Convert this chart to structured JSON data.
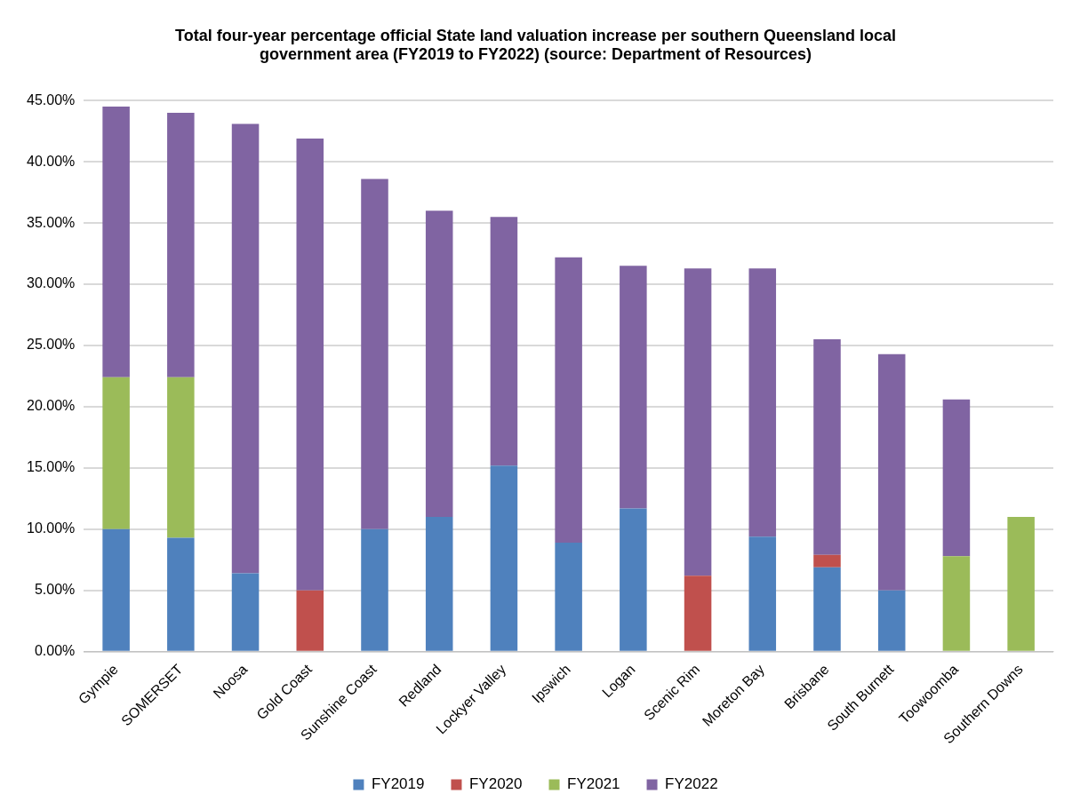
{
  "chart_data": {
    "type": "bar",
    "title": "Total four-year percentage official State land valuation increase per southern Queensland local government area (FY2019 to FY2022) (source: Department of Resources)",
    "categories": [
      "Gympie",
      "SOMERSET",
      "Noosa",
      "Gold Coast",
      "Sunshine Coast",
      "Redland",
      "Lockyer Valley",
      "Ipswich",
      "Logan",
      "Scenic Rim",
      "Moreton Bay",
      "Brisbane",
      "South Burnett",
      "Toowoomba",
      "Southern Downs"
    ],
    "stacked": true,
    "series": [
      {
        "name": "FY2019",
        "color": "#4f81bd",
        "values": [
          10.0,
          9.3,
          6.4,
          null,
          10.0,
          11.0,
          15.2,
          8.9,
          11.7,
          null,
          9.4,
          6.9,
          5.0,
          null,
          null
        ]
      },
      {
        "name": "FY2020",
        "color": "#c0504d",
        "values": [
          null,
          null,
          null,
          5.0,
          null,
          null,
          null,
          null,
          null,
          6.2,
          null,
          1.0,
          null,
          null,
          null
        ]
      },
      {
        "name": "FY2021",
        "color": "#9bbb59",
        "values": [
          12.4,
          13.1,
          null,
          null,
          null,
          null,
          null,
          null,
          null,
          null,
          null,
          null,
          null,
          7.8,
          11.0
        ]
      },
      {
        "name": "FY2022",
        "color": "#8064a2",
        "values": [
          22.1,
          21.6,
          36.7,
          36.9,
          28.6,
          25.0,
          20.3,
          23.3,
          19.8,
          25.1,
          21.9,
          17.6,
          19.3,
          12.8,
          null
        ]
      }
    ],
    "ylim": [
      0,
      45
    ],
    "yticks": [
      {
        "value": 0,
        "label": "0.00%"
      },
      {
        "value": 5,
        "label": "5.00%"
      },
      {
        "value": 10,
        "label": "10.00%"
      },
      {
        "value": 15,
        "label": "15.00%"
      },
      {
        "value": 20,
        "label": "20.00%"
      },
      {
        "value": 25,
        "label": "25.00%"
      },
      {
        "value": 30,
        "label": "30.00%"
      },
      {
        "value": 35,
        "label": "35.00%"
      },
      {
        "value": 40,
        "label": "40.00%"
      },
      {
        "value": 45,
        "label": "45.00%"
      }
    ],
    "grid": "y",
    "legend": "bottom"
  }
}
